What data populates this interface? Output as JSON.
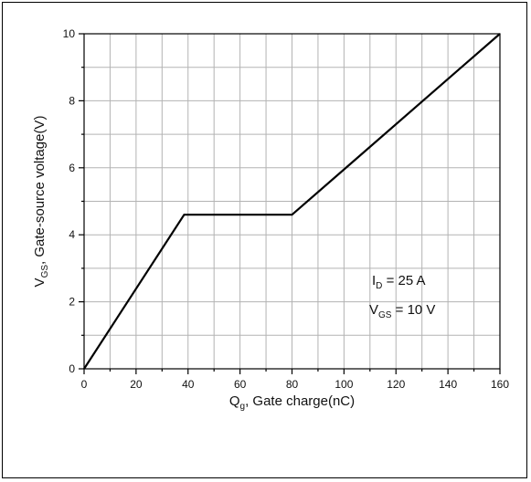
{
  "chart_data": {
    "type": "line",
    "xlabel": {
      "main": "Q",
      "sub": "g",
      "rest": ", Gate charge(nC)"
    },
    "ylabel": {
      "main": "V",
      "sub": "GS",
      "rest": ", Gate-source voltage(V)"
    },
    "xlim": [
      0,
      160
    ],
    "ylim": [
      0,
      10
    ],
    "xticks": [
      0,
      20,
      40,
      60,
      80,
      100,
      120,
      140,
      160
    ],
    "yticks": [
      0,
      2,
      4,
      6,
      8,
      10
    ],
    "grid": true,
    "series": [
      {
        "x": [
          0,
          38.5,
          80,
          160
        ],
        "y": [
          0,
          4.6,
          4.6,
          10
        ],
        "color": "#000000"
      }
    ],
    "annotations": [
      {
        "main": "I",
        "sub": "D",
        "rest": " = 25 A"
      },
      {
        "main": "V",
        "sub": "GS",
        "rest": " = 10 V"
      }
    ]
  }
}
